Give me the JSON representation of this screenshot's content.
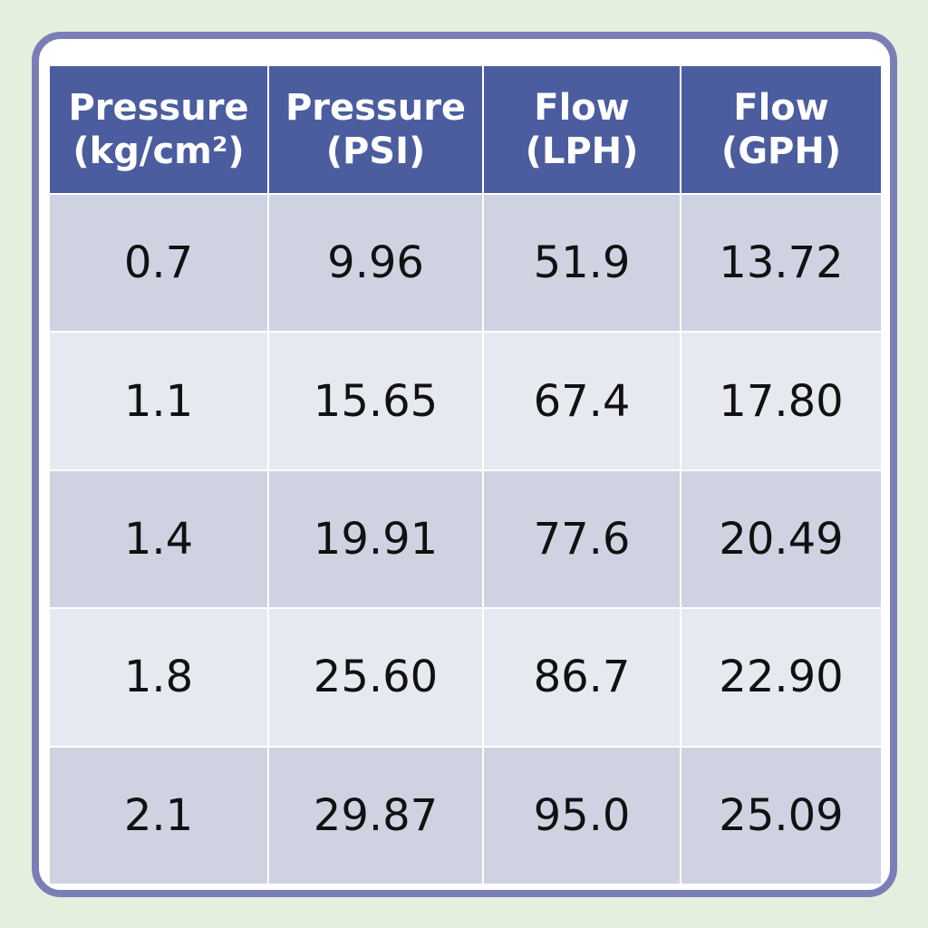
{
  "table": {
    "headers": [
      [
        "Pressure",
        "(kg/cm²)"
      ],
      [
        "Pressure",
        "(PSI)"
      ],
      [
        "Flow",
        "(LPH)"
      ],
      [
        "Flow",
        "(GPH)"
      ]
    ],
    "rows": [
      [
        "0.7",
        "9.96",
        "51.9",
        "13.72"
      ],
      [
        "1.1",
        "15.65",
        "67.4",
        "17.80"
      ],
      [
        "1.4",
        "19.91",
        "77.6",
        "20.49"
      ],
      [
        "1.8",
        "25.60",
        "86.7",
        "22.90"
      ],
      [
        "2.1",
        "29.87",
        "95.0",
        "25.09"
      ]
    ]
  }
}
